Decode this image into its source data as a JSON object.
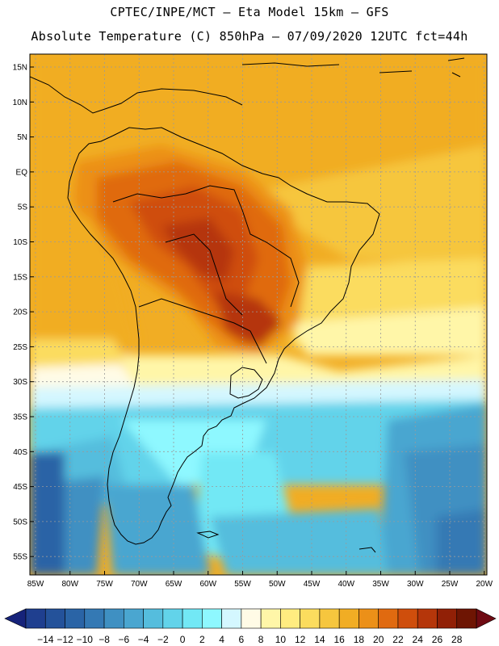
{
  "title_line1": "CPTEC/INPE/MCT –  Eta Model 15km – GFS",
  "title_line2": "Absolute Temperature (C) 850hPa – 07/09/2020 12UTC fct=44h",
  "lat_labels": [
    "15N",
    "10N",
    "5N",
    "EQ",
    "5S",
    "10S",
    "15S",
    "20S",
    "25S",
    "30S",
    "35S",
    "40S",
    "45S",
    "50S",
    "55S"
  ],
  "lon_labels": [
    "85W",
    "80W",
    "75W",
    "70W",
    "65W",
    "60W",
    "55W",
    "50W",
    "45W",
    "40W",
    "35W",
    "30W",
    "25W",
    "20W"
  ],
  "colorbar": {
    "labels": [
      "-14",
      "-12",
      "-10",
      "-8",
      "-6",
      "-4",
      "-2",
      "0",
      "2",
      "4",
      "6",
      "8",
      "10",
      "12",
      "14",
      "16",
      "18",
      "20",
      "22",
      "24",
      "26",
      "28"
    ],
    "colors": [
      "#1f3f8f",
      "#24529a",
      "#2a64a6",
      "#3479b4",
      "#3f90c2",
      "#4aa6d0",
      "#55bddd",
      "#62d3ea",
      "#72e8f5",
      "#8ef8ff",
      "#d4f7ff",
      "#fffbe6",
      "#fff6a8",
      "#ffec80",
      "#fbdc5e",
      "#f6c63e",
      "#f1ad24",
      "#ec9018",
      "#e06a10",
      "#cf4e0c",
      "#b5360a",
      "#912006",
      "#6e1503"
    ],
    "end_left": "#16237a",
    "end_right": "#6e0a12"
  },
  "colors": {
    "grid": "#9a9a9a",
    "coast": "#000000"
  }
}
